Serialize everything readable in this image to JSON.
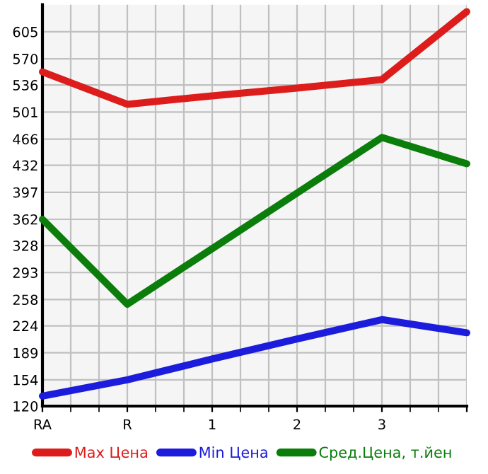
{
  "chart_data": {
    "type": "line",
    "categories": [
      "RA",
      "R",
      "1",
      "2",
      "3",
      null
    ],
    "series": [
      {
        "name": "Max Цена",
        "color": "#dd1c1c",
        "values": [
          553,
          511,
          522,
          532,
          543,
          631
        ]
      },
      {
        "name": "Min Цена",
        "color": "#1c1cdd",
        "values": [
          133,
          154,
          181,
          207,
          232,
          215
        ]
      },
      {
        "name": "Сред.Цена, т.йен",
        "color": "#0a7d0a",
        "values": [
          362,
          252,
          324,
          396,
          468,
          434
        ]
      }
    ],
    "ylim": [
      120,
      640
    ],
    "yticks": [
      120,
      154,
      189,
      224,
      258,
      293,
      328,
      362,
      397,
      432,
      466,
      501,
      536,
      570,
      605
    ],
    "grid": true,
    "legend": "bottom",
    "marker": "none",
    "line_style": "solid"
  }
}
